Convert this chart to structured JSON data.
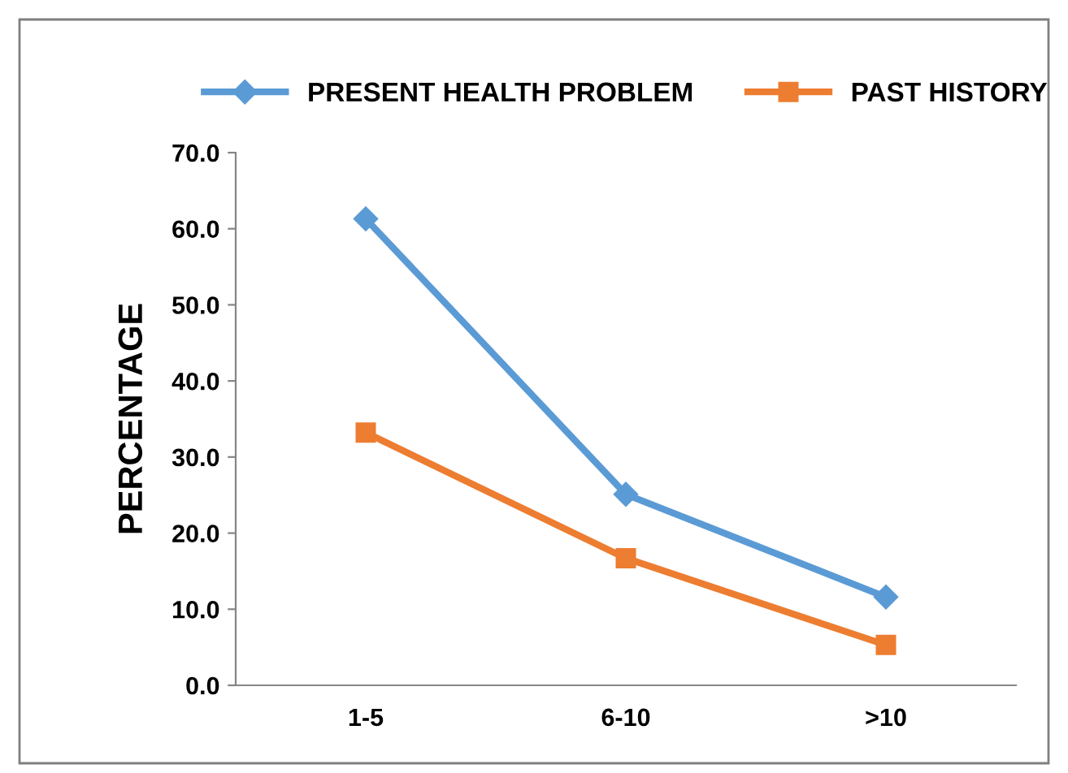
{
  "chart_data": {
    "type": "line",
    "ylabel": "PERCENTAGE",
    "categories": [
      "1-5",
      "6-10",
      ">10"
    ],
    "series": [
      {
        "name": "PRESENT HEALTH PROBLEM",
        "color": "#5b9bd5",
        "values": [
          61.3,
          25.1,
          11.6
        ],
        "marker": "diamond"
      },
      {
        "name": "PAST HISTORY",
        "color": "#ed7d31",
        "values": [
          33.2,
          16.7,
          5.3
        ],
        "marker": "square"
      }
    ],
    "ylim": [
      0,
      70
    ],
    "yticks": [
      {
        "value": 0,
        "label": "0.0"
      },
      {
        "value": 10,
        "label": "10.0"
      },
      {
        "value": 20,
        "label": "20.0"
      },
      {
        "value": 30,
        "label": "30.0"
      },
      {
        "value": 40,
        "label": "40.0"
      },
      {
        "value": 50,
        "label": "50.0"
      },
      {
        "value": 60,
        "label": "60.0"
      },
      {
        "value": 70,
        "label": "70.0"
      }
    ],
    "grid": false,
    "legend": "top",
    "line_style": "solid"
  }
}
